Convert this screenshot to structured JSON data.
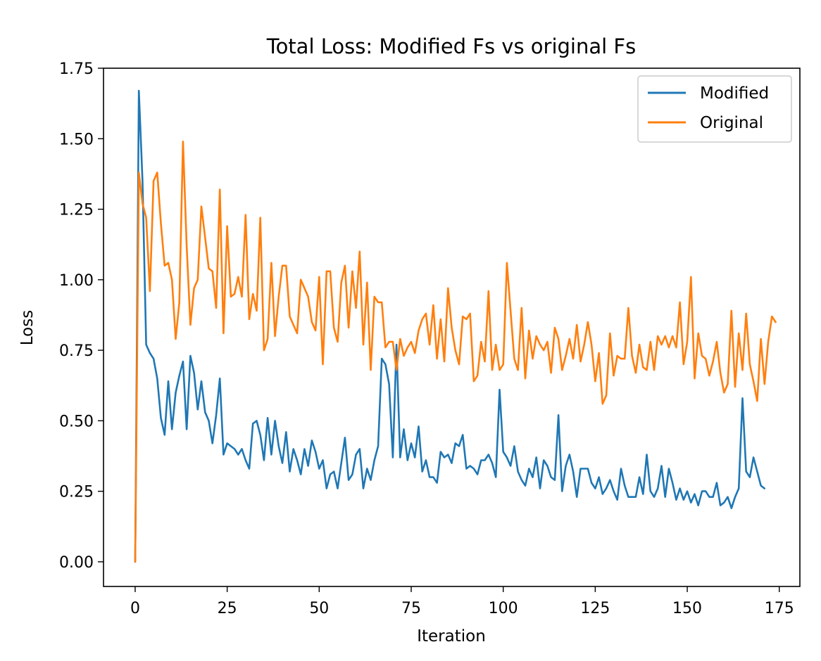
{
  "chart_data": {
    "type": "line",
    "title": "Total Loss: Modified Fs vs original Fs",
    "xlabel": "Iteration",
    "ylabel": "Loss",
    "xlim": [
      -8.6,
      180.6
    ],
    "ylim": [
      -0.0875,
      1.75
    ],
    "xticks": [
      0,
      25,
      50,
      75,
      100,
      125,
      150,
      175
    ],
    "xtick_labels": [
      "0",
      "25",
      "50",
      "75",
      "100",
      "125",
      "150",
      "175"
    ],
    "yticks": [
      0.0,
      0.25,
      0.5,
      0.75,
      1.0,
      1.25,
      1.5,
      1.75
    ],
    "ytick_labels": [
      "0.00",
      "0.25",
      "0.50",
      "0.75",
      "1.00",
      "1.25",
      "1.50",
      "1.75"
    ],
    "grid": false,
    "legend_position": "top-right",
    "series": [
      {
        "name": "Modified",
        "color": "#1f77b4",
        "values": [
          0.0,
          1.67,
          1.35,
          0.77,
          0.74,
          0.72,
          0.65,
          0.51,
          0.45,
          0.64,
          0.47,
          0.6,
          0.66,
          0.71,
          0.47,
          0.73,
          0.67,
          0.54,
          0.64,
          0.53,
          0.5,
          0.42,
          0.52,
          0.65,
          0.38,
          0.42,
          0.41,
          0.4,
          0.38,
          0.4,
          0.36,
          0.33,
          0.49,
          0.5,
          0.45,
          0.36,
          0.51,
          0.38,
          0.5,
          0.41,
          0.35,
          0.46,
          0.32,
          0.4,
          0.36,
          0.31,
          0.4,
          0.34,
          0.43,
          0.39,
          0.33,
          0.36,
          0.26,
          0.31,
          0.32,
          0.26,
          0.35,
          0.44,
          0.29,
          0.31,
          0.38,
          0.4,
          0.26,
          0.33,
          0.29,
          0.36,
          0.41,
          0.72,
          0.7,
          0.63,
          0.37,
          0.77,
          0.37,
          0.47,
          0.36,
          0.42,
          0.37,
          0.48,
          0.32,
          0.36,
          0.3,
          0.3,
          0.28,
          0.39,
          0.37,
          0.38,
          0.35,
          0.42,
          0.41,
          0.45,
          0.33,
          0.34,
          0.33,
          0.31,
          0.36,
          0.36,
          0.38,
          0.35,
          0.3,
          0.61,
          0.39,
          0.37,
          0.34,
          0.41,
          0.32,
          0.29,
          0.27,
          0.33,
          0.3,
          0.37,
          0.26,
          0.36,
          0.34,
          0.3,
          0.29,
          0.52,
          0.25,
          0.34,
          0.38,
          0.32,
          0.23,
          0.33,
          0.33,
          0.33,
          0.28,
          0.26,
          0.3,
          0.24,
          0.26,
          0.29,
          0.25,
          0.22,
          0.33,
          0.27,
          0.23,
          0.23,
          0.23,
          0.3,
          0.24,
          0.38,
          0.25,
          0.23,
          0.26,
          0.34,
          0.23,
          0.33,
          0.28,
          0.22,
          0.26,
          0.22,
          0.25,
          0.21,
          0.24,
          0.2,
          0.25,
          0.25,
          0.23,
          0.23,
          0.28,
          0.2,
          0.21,
          0.23,
          0.19,
          0.23,
          0.26,
          0.58,
          0.32,
          0.3,
          0.37,
          0.32,
          0.27,
          0.26
        ]
      },
      {
        "name": "Original",
        "color": "#ff7f0e",
        "values": [
          0.0,
          1.38,
          1.27,
          1.22,
          0.96,
          1.35,
          1.38,
          1.2,
          1.05,
          1.06,
          1.0,
          0.79,
          0.92,
          1.49,
          1.12,
          0.84,
          0.97,
          1.0,
          1.26,
          1.15,
          1.04,
          1.03,
          0.9,
          1.32,
          0.81,
          1.19,
          0.94,
          0.95,
          1.01,
          0.94,
          1.23,
          0.86,
          0.95,
          0.89,
          1.22,
          0.75,
          0.79,
          1.06,
          0.8,
          0.94,
          1.05,
          1.05,
          0.87,
          0.84,
          0.81,
          1.0,
          0.97,
          0.94,
          0.85,
          0.82,
          1.01,
          0.7,
          1.03,
          1.03,
          0.83,
          0.78,
          0.99,
          1.05,
          0.83,
          1.03,
          0.9,
          1.1,
          0.77,
          0.99,
          0.68,
          0.94,
          0.92,
          0.92,
          0.76,
          0.78,
          0.78,
          0.68,
          0.79,
          0.73,
          0.76,
          0.78,
          0.74,
          0.82,
          0.86,
          0.88,
          0.77,
          0.91,
          0.72,
          0.86,
          0.71,
          0.97,
          0.83,
          0.75,
          0.7,
          0.87,
          0.86,
          0.88,
          0.64,
          0.66,
          0.78,
          0.71,
          0.96,
          0.68,
          0.77,
          0.68,
          0.7,
          1.06,
          0.89,
          0.72,
          0.68,
          0.9,
          0.65,
          0.82,
          0.72,
          0.8,
          0.77,
          0.75,
          0.78,
          0.67,
          0.83,
          0.79,
          0.68,
          0.73,
          0.79,
          0.72,
          0.84,
          0.71,
          0.77,
          0.85,
          0.77,
          0.64,
          0.74,
          0.56,
          0.59,
          0.81,
          0.66,
          0.73,
          0.72,
          0.72,
          0.9,
          0.73,
          0.67,
          0.77,
          0.69,
          0.68,
          0.78,
          0.68,
          0.8,
          0.77,
          0.8,
          0.76,
          0.8,
          0.76,
          0.92,
          0.7,
          0.78,
          1.01,
          0.65,
          0.81,
          0.73,
          0.72,
          0.66,
          0.71,
          0.78,
          0.67,
          0.6,
          0.63,
          0.89,
          0.62,
          0.81,
          0.68,
          0.88,
          0.7,
          0.64,
          0.57,
          0.79,
          0.63,
          0.78,
          0.87,
          0.85
        ]
      }
    ]
  }
}
